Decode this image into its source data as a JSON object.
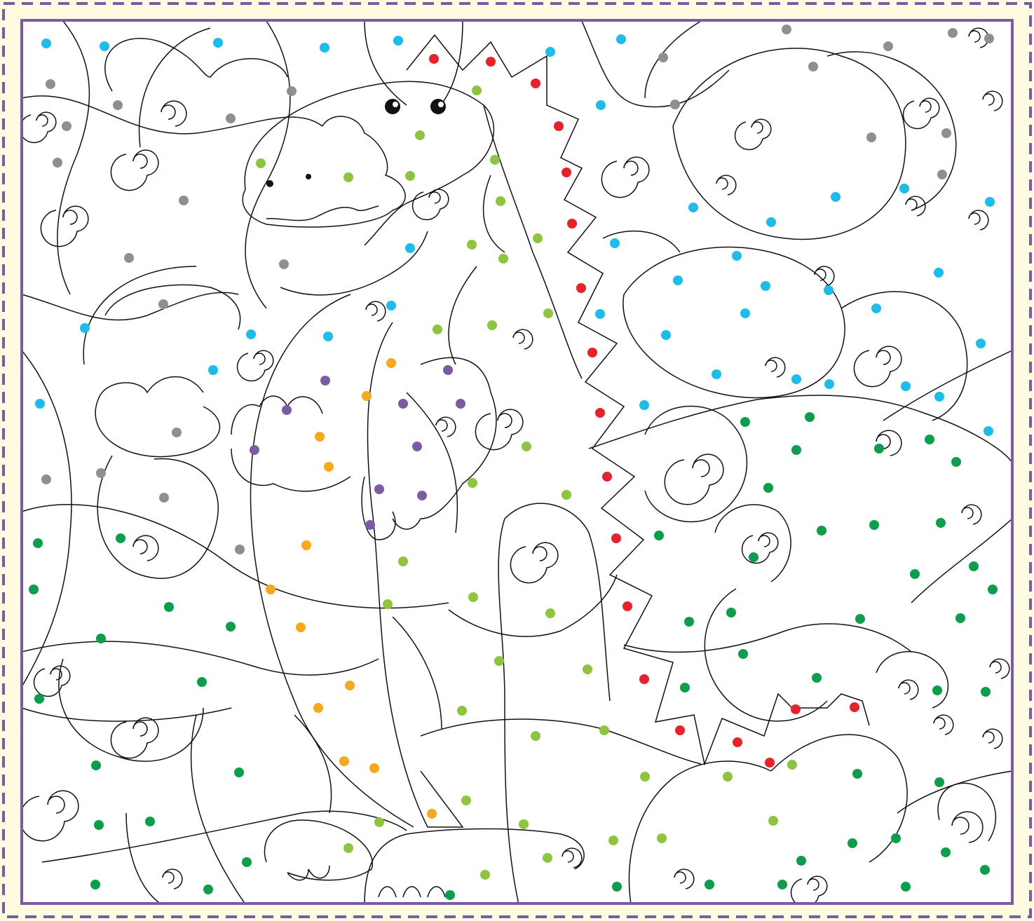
{
  "puzzle": {
    "type": "color-by-dot dinosaur puzzle",
    "colors": {
      "page_bg": "#fffbe0",
      "frame": "#7b5aa6",
      "line": "#111111",
      "red": "#e8212a",
      "blue": "#1ebcec",
      "gray": "#8f8f8f",
      "lime": "#8fc43f",
      "green": "#0b9e4b",
      "orange": "#f7a81b",
      "purple": "#7b5aa6"
    },
    "dot_groups": [
      {
        "name": "red",
        "count": 18
      },
      {
        "name": "blue",
        "count": 52
      },
      {
        "name": "gray",
        "count": 27
      },
      {
        "name": "lime",
        "count": 44
      },
      {
        "name": "green",
        "count": 58
      },
      {
        "name": "orange",
        "count": 16
      },
      {
        "name": "purple",
        "count": 11
      }
    ]
  }
}
